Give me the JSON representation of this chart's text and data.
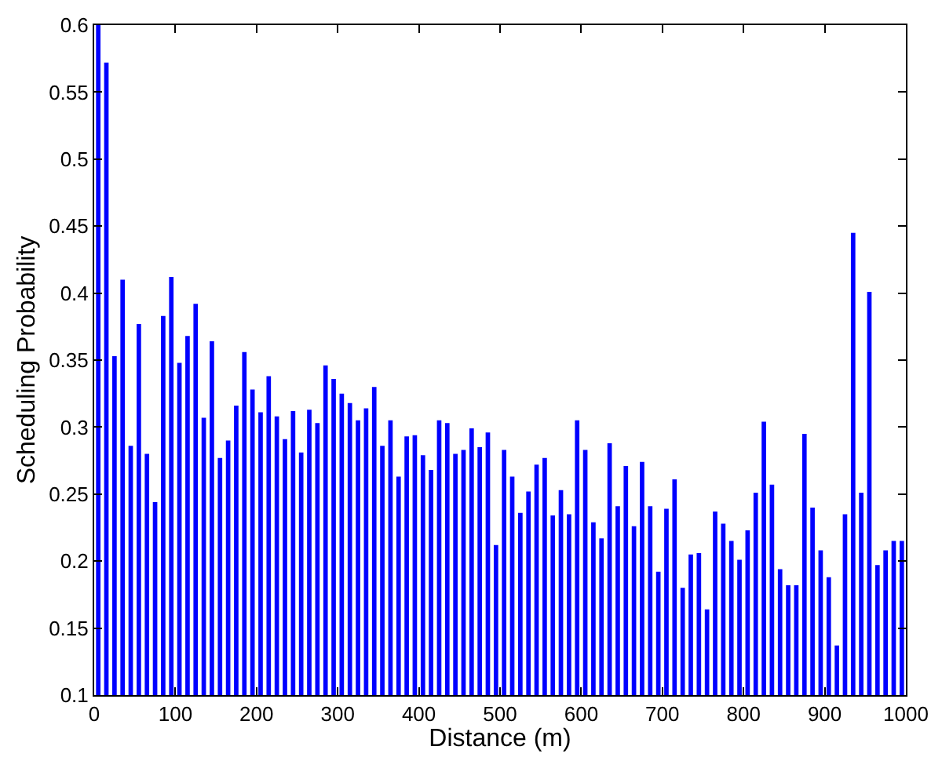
{
  "chart_data": {
    "type": "bar",
    "xlabel": "Distance (m)",
    "ylabel": "Scheduling Probability",
    "x": [
      5,
      15,
      25,
      35,
      45,
      55,
      65,
      75,
      85,
      95,
      105,
      115,
      125,
      135,
      145,
      155,
      165,
      175,
      185,
      195,
      205,
      215,
      225,
      235,
      245,
      255,
      265,
      275,
      285,
      295,
      305,
      315,
      325,
      335,
      345,
      355,
      365,
      375,
      385,
      395,
      405,
      415,
      425,
      435,
      445,
      455,
      465,
      475,
      485,
      495,
      505,
      515,
      525,
      535,
      545,
      555,
      565,
      575,
      585,
      595,
      605,
      615,
      625,
      635,
      645,
      655,
      665,
      675,
      685,
      695,
      705,
      715,
      725,
      735,
      745,
      755,
      765,
      775,
      785,
      795,
      805,
      815,
      825,
      835,
      845,
      855,
      865,
      875,
      885,
      895,
      905,
      915,
      925,
      935,
      945,
      955,
      965,
      975,
      985,
      995
    ],
    "series": [
      {
        "color": "#0000ff",
        "values": [
          0.6,
          0.572,
          0.353,
          0.41,
          0.286,
          0.377,
          0.28,
          0.244,
          0.383,
          0.412,
          0.348,
          0.368,
          0.392,
          0.307,
          0.364,
          0.277,
          0.29,
          0.316,
          0.356,
          0.328,
          0.311,
          0.338,
          0.308,
          0.291,
          0.312,
          0.281,
          0.313,
          0.303,
          0.346,
          0.336,
          0.325,
          0.318,
          0.305,
          0.314,
          0.33,
          0.286,
          0.305,
          0.263,
          0.293,
          0.294,
          0.279,
          0.268,
          0.305,
          0.303,
          0.28,
          0.283,
          0.299,
          0.285,
          0.296,
          0.212,
          0.283,
          0.263,
          0.236,
          0.252,
          0.272,
          0.277,
          0.234,
          0.253,
          0.235,
          0.305,
          0.283,
          0.229,
          0.217,
          0.288,
          0.241,
          0.271,
          0.226,
          0.274,
          0.241,
          0.192,
          0.239,
          0.261,
          0.18,
          0.205,
          0.206,
          0.164,
          0.237,
          0.228,
          0.215,
          0.201,
          0.223,
          0.251,
          0.304,
          0.257,
          0.194,
          0.182,
          0.182,
          0.295,
          0.24,
          0.208,
          0.188,
          0.137,
          0.235,
          0.445,
          0.251,
          0.401,
          0.197,
          0.208,
          0.215,
          0.215
        ]
      }
    ],
    "xlim": [
      0,
      1000
    ],
    "xticks": [
      0,
      100,
      200,
      300,
      400,
      500,
      600,
      700,
      800,
      900,
      1000
    ],
    "ylim": [
      0.1,
      0.6
    ],
    "yticks": [
      0.1,
      0.15,
      0.2,
      0.25,
      0.3,
      0.35,
      0.4,
      0.45,
      0.5,
      0.55,
      0.6
    ],
    "marker": "none"
  }
}
